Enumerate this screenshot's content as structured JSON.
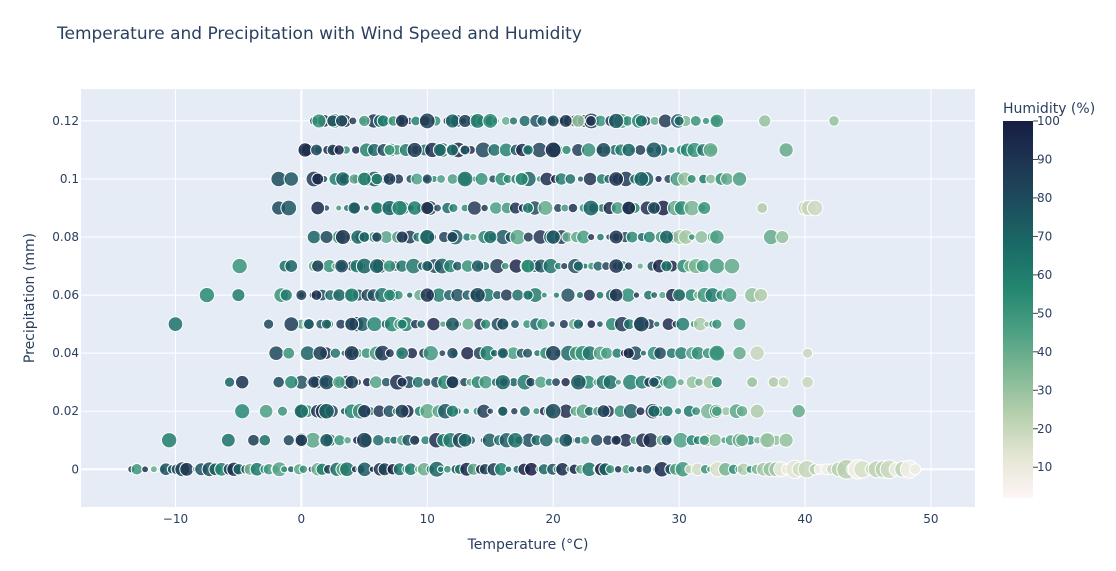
{
  "chart_data": {
    "type": "scatter",
    "title": "Temperature and Precipitation with Wind Speed and Humidity",
    "xlabel": "Temperature (°C)",
    "ylabel": "Precipitation (mm)",
    "xlim": [
      -17.5,
      53.5
    ],
    "ylim": [
      -0.013,
      0.131
    ],
    "x_ticks": [
      -10,
      0,
      10,
      20,
      30,
      40,
      50
    ],
    "x_tick_labels": [
      "−10",
      "0",
      "10",
      "20",
      "30",
      "40",
      "50"
    ],
    "y_ticks": [
      0,
      0.02,
      0.04,
      0.06,
      0.08,
      0.1,
      0.12
    ],
    "y_tick_labels": [
      "0",
      "0.02",
      "0.04",
      "0.06",
      "0.08",
      "0.1",
      "0.12"
    ],
    "grid": true,
    "colorbar": {
      "title": "Humidity (%)",
      "range": [
        2,
        100
      ],
      "ticks": [
        10,
        20,
        30,
        40,
        50,
        60,
        70,
        80,
        90,
        100
      ],
      "colorscale": [
        "#fdf5f6",
        "#e4e6d4",
        "#b6cfad",
        "#7fb894",
        "#4b9f83",
        "#23866f",
        "#1a6b66",
        "#1d4e5e",
        "#1e3551",
        "#161d43"
      ]
    },
    "rows": [
      {
        "y": 0.12,
        "range": [
          1,
          33
        ],
        "points": [
          [
            1.4,
            52
          ],
          [
            2.5,
            78
          ],
          [
            3.2,
            80
          ],
          [
            5,
            45
          ],
          [
            6.5,
            60
          ],
          [
            7.3,
            50
          ],
          [
            8,
            90
          ],
          [
            10,
            85
          ],
          [
            12,
            70
          ],
          [
            13,
            85
          ],
          [
            14,
            60
          ],
          [
            15,
            55
          ],
          [
            20,
            80
          ],
          [
            21,
            88
          ],
          [
            22,
            30
          ],
          [
            23,
            90
          ],
          [
            25,
            75
          ],
          [
            27,
            65
          ],
          [
            30,
            70
          ],
          [
            33,
            50
          ],
          [
            36.8,
            30
          ],
          [
            42.3,
            30
          ]
        ]
      },
      {
        "y": 0.11,
        "range": [
          0,
          33
        ],
        "points": [
          [
            0.3,
            95
          ],
          [
            1.2,
            80
          ],
          [
            2.5,
            85
          ],
          [
            3,
            95
          ],
          [
            7,
            50
          ],
          [
            9,
            88
          ],
          [
            11,
            70
          ],
          [
            12,
            70
          ],
          [
            13,
            80
          ],
          [
            18,
            65
          ],
          [
            20,
            95
          ],
          [
            24,
            80
          ],
          [
            26,
            70
          ],
          [
            28,
            75
          ],
          [
            32.5,
            40
          ],
          [
            38.5,
            40
          ]
        ]
      },
      {
        "y": 0.1,
        "range": [
          1,
          34
        ],
        "points": [
          [
            -1.8,
            80
          ],
          [
            -0.8,
            75
          ],
          [
            1.3,
            95
          ],
          [
            3.3,
            70
          ],
          [
            4.2,
            40
          ],
          [
            5,
            60
          ],
          [
            6,
            60
          ],
          [
            7,
            85
          ],
          [
            10,
            80
          ],
          [
            13,
            65
          ],
          [
            17.5,
            55
          ],
          [
            25,
            90
          ],
          [
            27,
            70
          ],
          [
            33.8,
            40
          ],
          [
            34.8,
            45
          ]
        ]
      },
      {
        "y": 0.09,
        "range": [
          2,
          32
        ],
        "points": [
          [
            -1.8,
            80
          ],
          [
            -1,
            75
          ],
          [
            1.3,
            95
          ],
          [
            4.2,
            75
          ],
          [
            6,
            65
          ],
          [
            7,
            70
          ],
          [
            7.8,
            55
          ],
          [
            9,
            60
          ],
          [
            10,
            90
          ],
          [
            18,
            60
          ],
          [
            23,
            70
          ],
          [
            26,
            95
          ],
          [
            28,
            80
          ],
          [
            32,
            50
          ],
          [
            36.6,
            25
          ],
          [
            40,
            20
          ],
          [
            40.3,
            20
          ],
          [
            40.8,
            18
          ]
        ]
      },
      {
        "y": 0.08,
        "range": [
          3,
          33
        ],
        "points": [
          [
            1,
            70
          ],
          [
            2,
            80
          ],
          [
            3.3,
            90
          ],
          [
            4.5,
            70
          ],
          [
            5,
            70
          ],
          [
            6,
            85
          ],
          [
            8,
            90
          ],
          [
            10,
            70
          ],
          [
            12,
            85
          ],
          [
            15,
            65
          ],
          [
            20,
            75
          ],
          [
            25,
            90
          ],
          [
            29,
            70
          ],
          [
            33,
            45
          ],
          [
            37.3,
            40
          ],
          [
            38.2,
            30
          ]
        ]
      },
      {
        "y": 0.07,
        "range": [
          1,
          32
        ],
        "points": [
          [
            -4.9,
            50
          ],
          [
            -1.3,
            65
          ],
          [
            -0.8,
            70
          ],
          [
            1.3,
            85
          ],
          [
            3.2,
            80
          ],
          [
            4.4,
            60
          ],
          [
            5,
            70
          ],
          [
            6,
            70
          ],
          [
            7,
            50
          ],
          [
            10,
            75
          ],
          [
            14,
            75
          ],
          [
            18,
            55
          ],
          [
            22,
            70
          ],
          [
            25,
            90
          ],
          [
            29,
            65
          ],
          [
            33,
            45
          ],
          [
            34.2,
            40
          ]
        ]
      },
      {
        "y": 0.06,
        "range": [
          0,
          34
        ],
        "points": [
          [
            -7.5,
            55
          ],
          [
            -5,
            60
          ],
          [
            -1.6,
            50
          ],
          [
            -1.2,
            60
          ],
          [
            0,
            85
          ],
          [
            1.2,
            90
          ],
          [
            3,
            70
          ],
          [
            4,
            60
          ],
          [
            7,
            55
          ],
          [
            10,
            90
          ],
          [
            14,
            80
          ],
          [
            18,
            65
          ],
          [
            25,
            90
          ],
          [
            30,
            70
          ],
          [
            34,
            45
          ],
          [
            35.8,
            30
          ],
          [
            36.5,
            25
          ]
        ]
      },
      {
        "y": 0.05,
        "range": [
          0,
          33
        ],
        "points": [
          [
            -10,
            65
          ],
          [
            -2.6,
            80
          ],
          [
            -0.8,
            85
          ],
          [
            0.6,
            75
          ],
          [
            2,
            70
          ],
          [
            4,
            85
          ],
          [
            8,
            60
          ],
          [
            12,
            75
          ],
          [
            16,
            80
          ],
          [
            22,
            70
          ],
          [
            27,
            85
          ],
          [
            33,
            50
          ],
          [
            34.8,
            45
          ]
        ]
      },
      {
        "y": 0.04,
        "range": [
          1,
          33
        ],
        "points": [
          [
            -2,
            80
          ],
          [
            -1,
            50
          ],
          [
            0.5,
            70
          ],
          [
            1.5,
            85
          ],
          [
            4,
            90
          ],
          [
            8,
            65
          ],
          [
            12,
            80
          ],
          [
            16,
            75
          ],
          [
            20,
            85
          ],
          [
            26,
            95
          ],
          [
            33,
            50
          ],
          [
            34.8,
            40
          ],
          [
            36.2,
            20
          ],
          [
            40.2,
            20
          ]
        ]
      },
      {
        "y": 0.03,
        "range": [
          0,
          33
        ],
        "points": [
          [
            -5.7,
            70
          ],
          [
            -4.7,
            90
          ],
          [
            -1.8,
            80
          ],
          [
            -0.8,
            55
          ],
          [
            1,
            85
          ],
          [
            2,
            80
          ],
          [
            3,
            45
          ],
          [
            4,
            85
          ],
          [
            8,
            90
          ],
          [
            12,
            85
          ],
          [
            16,
            70
          ],
          [
            22,
            75
          ],
          [
            28,
            80
          ],
          [
            33,
            55
          ],
          [
            35.8,
            30
          ],
          [
            37.5,
            25
          ],
          [
            38.3,
            20
          ],
          [
            40.2,
            20
          ]
        ]
      },
      {
        "y": 0.02,
        "range": [
          0,
          35
        ],
        "points": [
          [
            -4.7,
            55
          ],
          [
            -2.8,
            45
          ],
          [
            -1.5,
            50
          ],
          [
            0,
            65
          ],
          [
            2,
            70
          ],
          [
            5,
            90
          ],
          [
            8,
            85
          ],
          [
            12,
            60
          ],
          [
            16,
            75
          ],
          [
            20,
            80
          ],
          [
            24,
            85
          ],
          [
            28,
            70
          ],
          [
            33,
            45
          ],
          [
            35,
            40
          ],
          [
            36.2,
            25
          ],
          [
            39.5,
            40
          ]
        ]
      },
      {
        "y": 0.01,
        "range": [
          0,
          38
        ],
        "points": [
          [
            -10.5,
            60
          ],
          [
            -5.8,
            65
          ],
          [
            -3.8,
            85
          ],
          [
            -2.9,
            65
          ],
          [
            -1,
            80
          ],
          [
            0,
            90
          ],
          [
            2,
            75
          ],
          [
            5,
            85
          ],
          [
            9,
            90
          ],
          [
            13,
            70
          ],
          [
            17,
            65
          ],
          [
            21,
            75
          ],
          [
            25,
            95
          ],
          [
            29,
            80
          ],
          [
            32,
            50
          ],
          [
            35,
            40
          ],
          [
            37,
            30
          ],
          [
            38.5,
            30
          ]
        ]
      }
    ],
    "zero_row": {
      "y": 0,
      "range": [
        -13.5,
        49
      ]
    }
  }
}
